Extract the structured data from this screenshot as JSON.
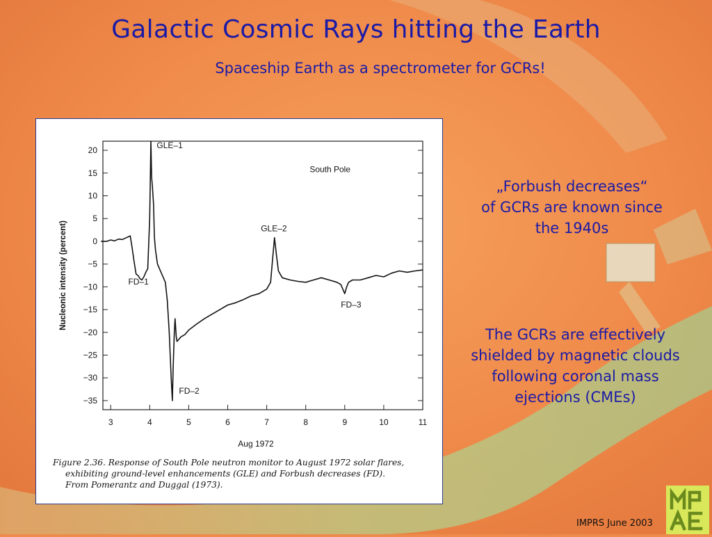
{
  "title": "Galactic Cosmic Rays hitting the Earth",
  "subtitle": "Spaceship Earth as a spectrometer for GCRs!",
  "side_text": {
    "forbush_line1": "„Forbush decreases“",
    "forbush_line2": "of GCRs are known since",
    "forbush_line3": "the 1940s",
    "shield_line1": "The GCRs are effectively",
    "shield_line2": "shielded by magnetic clouds",
    "shield_line3": "following coronal mass",
    "shield_line4": "ejections (CMEs)"
  },
  "figure_caption": {
    "line1": "Figure 2.36.  Response of South Pole neutron monitor to August 1972 solar flares,",
    "line2": "exhibiting ground-level enhancements (GLE) and Forbush decreases (FD).",
    "line3": "From Pomerantz and Duggal (1973)."
  },
  "footer": "IMPRS June 2003",
  "logo": {
    "text": "MPAE",
    "color": "#d9e85a",
    "ink": "#6a8a1e"
  },
  "colors": {
    "title": "#1a1aa6",
    "background": "#ee8a4c",
    "band": "#b8d07a"
  },
  "chart_data": {
    "type": "line",
    "title": "South Pole",
    "xlabel": "Aug 1972",
    "ylabel": "Nucleonic intensity (percent)",
    "xlim": [
      2.8,
      11.0
    ],
    "ylim": [
      -37,
      22
    ],
    "xticks": [
      3,
      4,
      5,
      6,
      7,
      8,
      9,
      10,
      11
    ],
    "yticks": [
      20,
      15,
      10,
      5,
      0,
      -5,
      -10,
      -15,
      -20,
      -25,
      -30,
      -35
    ],
    "series": [
      {
        "x": [
          2.75,
          2.9,
          3.0,
          3.1,
          3.2,
          3.3,
          3.4,
          3.5,
          3.55,
          3.6,
          3.65,
          3.7,
          3.75,
          3.8,
          3.85,
          3.9,
          3.95,
          4.0,
          4.03,
          4.05,
          4.07,
          4.1,
          4.12,
          4.15,
          4.2,
          4.3,
          4.4,
          4.45,
          4.5,
          4.52,
          4.55,
          4.58,
          4.6,
          4.63,
          4.65,
          4.68,
          4.7,
          4.75,
          4.8,
          4.9,
          5.0,
          5.2,
          5.4,
          5.6,
          5.8,
          6.0,
          6.2,
          6.4,
          6.6,
          6.8,
          7.0,
          7.1,
          7.15,
          7.2,
          7.25,
          7.3,
          7.4,
          7.6,
          7.8,
          8.0,
          8.2,
          8.4,
          8.6,
          8.8,
          8.9,
          8.95,
          9.0,
          9.05,
          9.1,
          9.2,
          9.4,
          9.6,
          9.8,
          10.0,
          10.2,
          10.4,
          10.6,
          10.8,
          11.0
        ],
        "y": [
          0,
          0,
          0.3,
          0.1,
          0.5,
          0.4,
          0.8,
          1.2,
          -1.5,
          -4.5,
          -7.2,
          -7.5,
          -8.2,
          -8.5,
          -7.8,
          -6.8,
          -6.0,
          5.0,
          22.0,
          14.0,
          12.0,
          8.0,
          1.0,
          -2.0,
          -5.0,
          -7.0,
          -9.0,
          -13.0,
          -20.0,
          -24.0,
          -30.0,
          -35.0,
          -28.0,
          -20.0,
          -17.0,
          -21.0,
          -22.0,
          -21.5,
          -21.0,
          -20.5,
          -19.5,
          -18.2,
          -17.0,
          -16.0,
          -15.0,
          -14.0,
          -13.5,
          -12.8,
          -12.0,
          -11.5,
          -10.5,
          -9.0,
          -4.0,
          0.8,
          -3.0,
          -6.5,
          -8.0,
          -8.5,
          -8.8,
          -9.0,
          -8.5,
          -8.0,
          -8.5,
          -9.0,
          -9.5,
          -10.5,
          -11.5,
          -10.0,
          -9.0,
          -8.5,
          -8.5,
          -8.0,
          -7.5,
          -7.8,
          -7.0,
          -6.5,
          -6.8,
          -6.5,
          -6.3
        ]
      }
    ],
    "annotations": [
      {
        "text": "GLE–1",
        "x": 4.18,
        "y": 20.5
      },
      {
        "text": "FD–1",
        "x": 3.45,
        "y": -9.5
      },
      {
        "text": "FD–2",
        "x": 4.75,
        "y": -33.5
      },
      {
        "text": "GLE–2",
        "x": 6.85,
        "y": 2.2
      },
      {
        "text": "FD–3",
        "x": 8.9,
        "y": -14.5
      }
    ]
  }
}
